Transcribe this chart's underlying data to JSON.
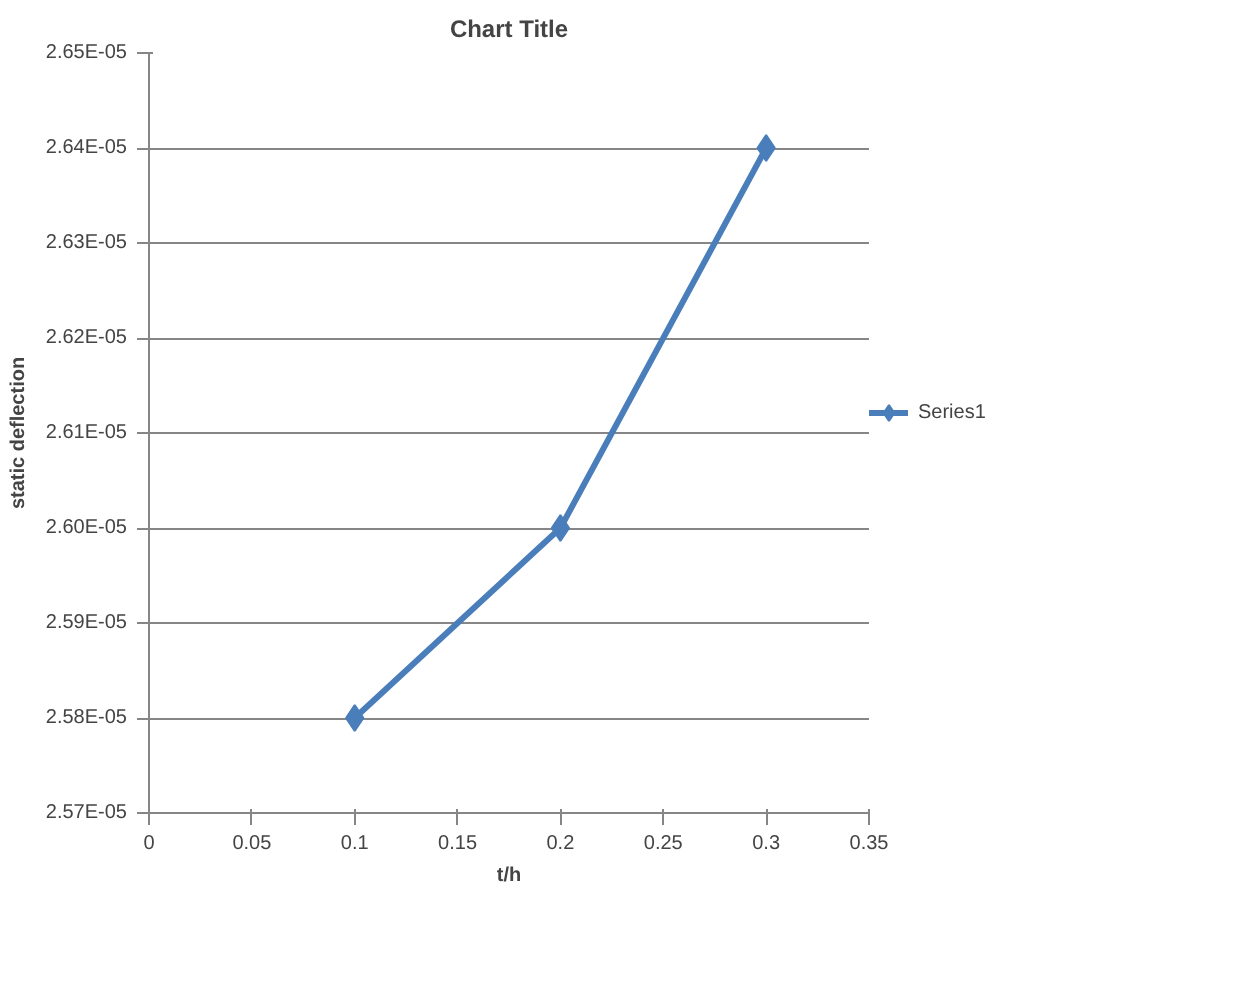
{
  "chart_data": {
    "type": "line",
    "title": "Chart Title",
    "xlabel": "t/h",
    "ylabel": "static deflection",
    "x": [
      0.1,
      0.2,
      0.3
    ],
    "series": [
      {
        "name": "Series1",
        "color": "#4a7ebb",
        "values": [
          2.58e-05,
          2.6e-05,
          2.64e-05
        ]
      }
    ],
    "xlim": [
      0,
      0.35
    ],
    "xticks": [
      0,
      0.05,
      0.1,
      0.15,
      0.2,
      0.25,
      0.3,
      0.35
    ],
    "ylim": [
      2.57e-05,
      2.65e-05
    ],
    "yticks": [
      {
        "value": 2.57e-05,
        "label": "2.57E-05"
      },
      {
        "value": 2.58e-05,
        "label": "2.58E-05"
      },
      {
        "value": 2.59e-05,
        "label": "2.59E-05"
      },
      {
        "value": 2.6e-05,
        "label": "2.60E-05"
      },
      {
        "value": 2.61e-05,
        "label": "2.61E-05"
      },
      {
        "value": 2.62e-05,
        "label": "2.62E-05"
      },
      {
        "value": 2.63e-05,
        "label": "2.63E-05"
      },
      {
        "value": 2.64e-05,
        "label": "2.64E-05"
      },
      {
        "value": 2.65e-05,
        "label": "2.65E-05"
      }
    ],
    "grid": "y",
    "legend": "right",
    "marker": "diamond",
    "line_style": "solid"
  }
}
